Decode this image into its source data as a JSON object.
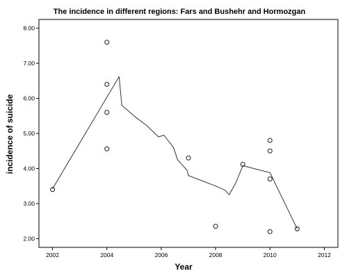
{
  "chart_data": {
    "type": "scatter",
    "title": "The incidence in different regions: Fars and Bushehr and Hormozgan",
    "xlabel": "Year",
    "ylabel": "incidence  of suicide",
    "xlim": [
      2001.5,
      2012.5
    ],
    "ylim": [
      1.75,
      8.25
    ],
    "x_ticks": [
      2002,
      2004,
      2006,
      2008,
      2010,
      2012
    ],
    "x_tick_labels": [
      "2002",
      "2004",
      "2006",
      "2008",
      "2010",
      "2012"
    ],
    "y_ticks": [
      2,
      3,
      4,
      5,
      6,
      7,
      8
    ],
    "y_tick_labels": [
      "2.00",
      "3.00",
      "4.00",
      "5.00",
      "6.00",
      "7.00",
      "8.00"
    ],
    "grid": false,
    "legend": "none",
    "points": [
      {
        "x": 2002,
        "y": 3.4
      },
      {
        "x": 2004,
        "y": 7.6
      },
      {
        "x": 2004,
        "y": 6.4
      },
      {
        "x": 2004,
        "y": 5.6
      },
      {
        "x": 2004,
        "y": 4.56
      },
      {
        "x": 2007,
        "y": 4.3
      },
      {
        "x": 2008,
        "y": 2.35
      },
      {
        "x": 2009,
        "y": 4.12
      },
      {
        "x": 2010,
        "y": 4.8
      },
      {
        "x": 2010,
        "y": 4.5
      },
      {
        "x": 2010,
        "y": 3.7
      },
      {
        "x": 2010,
        "y": 2.2
      },
      {
        "x": 2011,
        "y": 2.28
      }
    ],
    "fit_line": [
      {
        "x": 2002,
        "y": 3.42
      },
      {
        "x": 2004.45,
        "y": 6.62
      },
      {
        "x": 2004.55,
        "y": 5.8
      },
      {
        "x": 2005.0,
        "y": 5.5
      },
      {
        "x": 2005.5,
        "y": 5.2
      },
      {
        "x": 2005.9,
        "y": 4.9
      },
      {
        "x": 2006.1,
        "y": 4.95
      },
      {
        "x": 2006.45,
        "y": 4.6
      },
      {
        "x": 2006.6,
        "y": 4.25
      },
      {
        "x": 2006.95,
        "y": 3.95
      },
      {
        "x": 2007.0,
        "y": 3.8
      },
      {
        "x": 2007.5,
        "y": 3.65
      },
      {
        "x": 2008.0,
        "y": 3.5
      },
      {
        "x": 2008.35,
        "y": 3.38
      },
      {
        "x": 2008.5,
        "y": 3.25
      },
      {
        "x": 2008.75,
        "y": 3.6
      },
      {
        "x": 2009.0,
        "y": 4.08
      },
      {
        "x": 2009.5,
        "y": 3.98
      },
      {
        "x": 2010.0,
        "y": 3.88
      },
      {
        "x": 2011.0,
        "y": 2.28
      }
    ]
  }
}
